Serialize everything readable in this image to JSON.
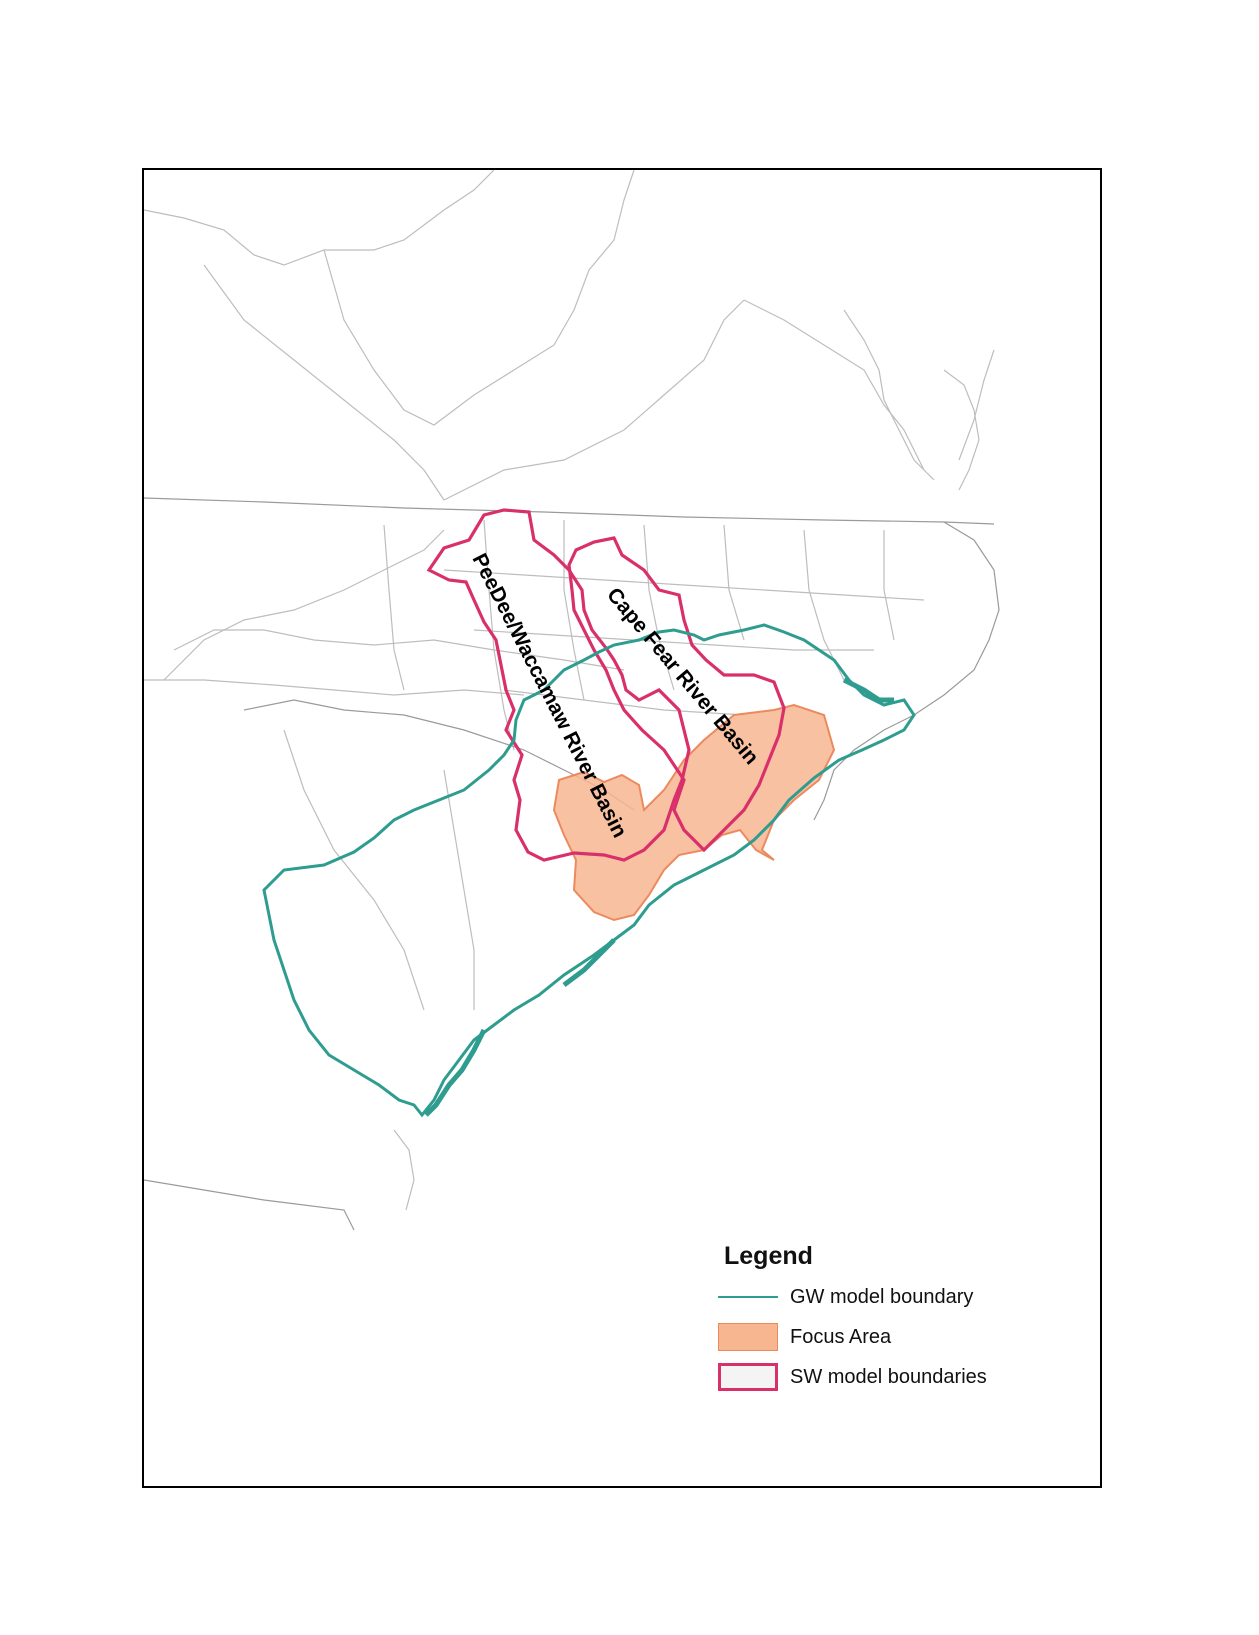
{
  "map": {
    "labels": {
      "peedee": "PeeDee/Waccamaw River Basin",
      "capefear": "Cape Fear River Basin"
    }
  },
  "legend": {
    "title": "Legend",
    "items": [
      {
        "id": "gw",
        "label": "GW model boundary",
        "symbol": "line",
        "color": "#2e9c8f"
      },
      {
        "id": "focus",
        "label": "Focus Area",
        "symbol": "fill",
        "color": "#f7b690",
        "stroke": "#ec8a5e"
      },
      {
        "id": "sw",
        "label": "SW model boundaries",
        "symbol": "outline",
        "color": "#d9306b"
      }
    ]
  },
  "colors": {
    "county_lines": "#b8b8b8",
    "gw_boundary": "#2e9c8f",
    "focus_fill": "#f7b690",
    "focus_stroke": "#ec8a5e",
    "sw_boundary": "#d9306b",
    "frame": "#000000"
  }
}
